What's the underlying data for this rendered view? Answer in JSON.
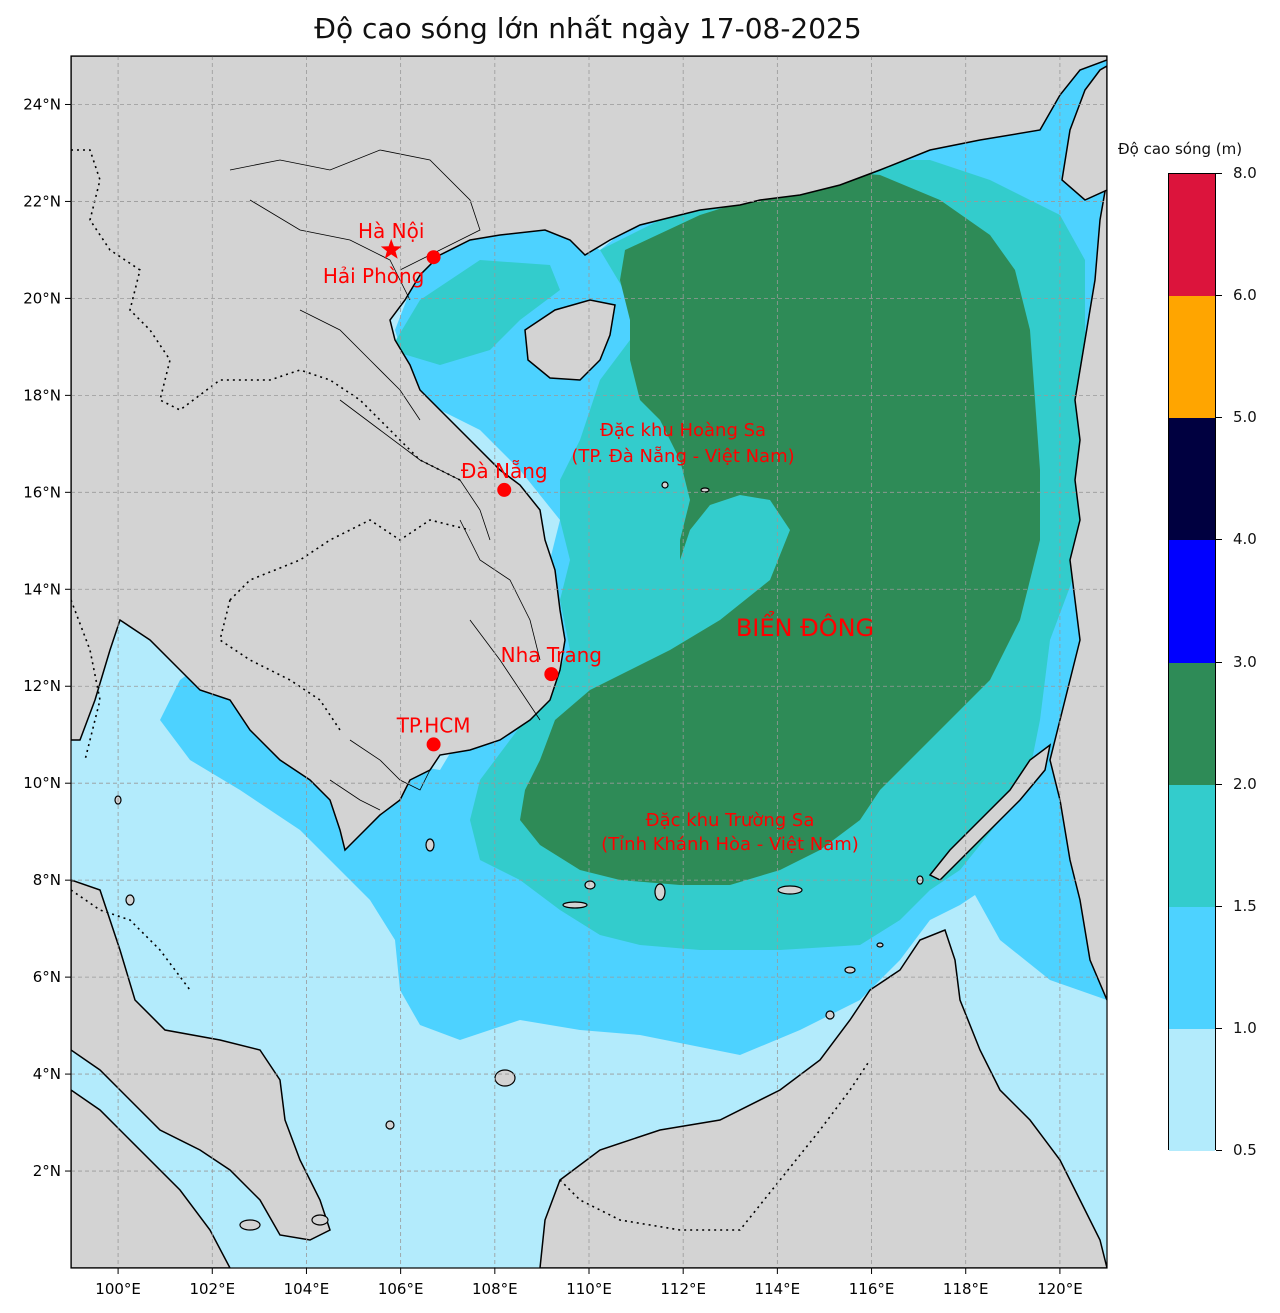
{
  "title": "Độ cao sóng lớn nhất ngày 17-08-2025",
  "map": {
    "lon_range": [
      99,
      121
    ],
    "lat_range": [
      0,
      25
    ],
    "lon_ticks": [
      "100°E",
      "102°E",
      "104°E",
      "106°E",
      "108°E",
      "110°E",
      "112°E",
      "114°E",
      "116°E",
      "118°E",
      "120°E"
    ],
    "lat_ticks": [
      "2°N",
      "4°N",
      "6°N",
      "8°N",
      "10°N",
      "12°N",
      "14°N",
      "16°N",
      "18°N",
      "20°N",
      "22°N",
      "24°N"
    ],
    "grid": true,
    "land_color": "#d3d3d3"
  },
  "colorbar": {
    "title": "Độ cao sóng (m)",
    "ticks": [
      "0.5",
      "1.0",
      "1.5",
      "2.0",
      "3.0",
      "4.0",
      "5.0",
      "6.0",
      "8.0"
    ],
    "bins": [
      {
        "range": "0.5–1.0",
        "color": "#b3ebfc"
      },
      {
        "range": "1.0–1.5",
        "color": "#4dd2ff"
      },
      {
        "range": "1.5–2.0",
        "color": "#33cccc"
      },
      {
        "range": "2.0–3.0",
        "color": "#2e8b57"
      },
      {
        "range": "3.0–4.0",
        "color": "#0000ff"
      },
      {
        "range": "4.0–5.0",
        "color": "#000040"
      },
      {
        "range": "5.0–6.0",
        "color": "#ffa500"
      },
      {
        "range": "6.0–8.0",
        "color": "#dc143c"
      }
    ]
  },
  "cities": [
    {
      "name": "Hà Nội",
      "lon": 105.8,
      "lat": 21.0,
      "marker": "star"
    },
    {
      "name": "Hải Phòng",
      "lon": 106.7,
      "lat": 20.85,
      "marker": "dot"
    },
    {
      "name": "Đà Nẵng",
      "lon": 108.2,
      "lat": 16.05,
      "marker": "dot"
    },
    {
      "name": "Nha Trang",
      "lon": 109.2,
      "lat": 12.25,
      "marker": "dot"
    },
    {
      "name": "TP.HCM",
      "lon": 106.7,
      "lat": 10.8,
      "marker": "dot"
    }
  ],
  "annotations": {
    "hoang_sa_line1": "Đặc khu Hoàng Sa",
    "hoang_sa_line2": "(TP. Đà Nẵng - Việt Nam)",
    "bien_dong": "BIỂN ĐÔNG",
    "truong_sa_line1": "Đặc khu Trường Sa",
    "truong_sa_line2": "(Tỉnh Khánh Hòa - Việt Nam)"
  },
  "text_color": "#ff0000"
}
